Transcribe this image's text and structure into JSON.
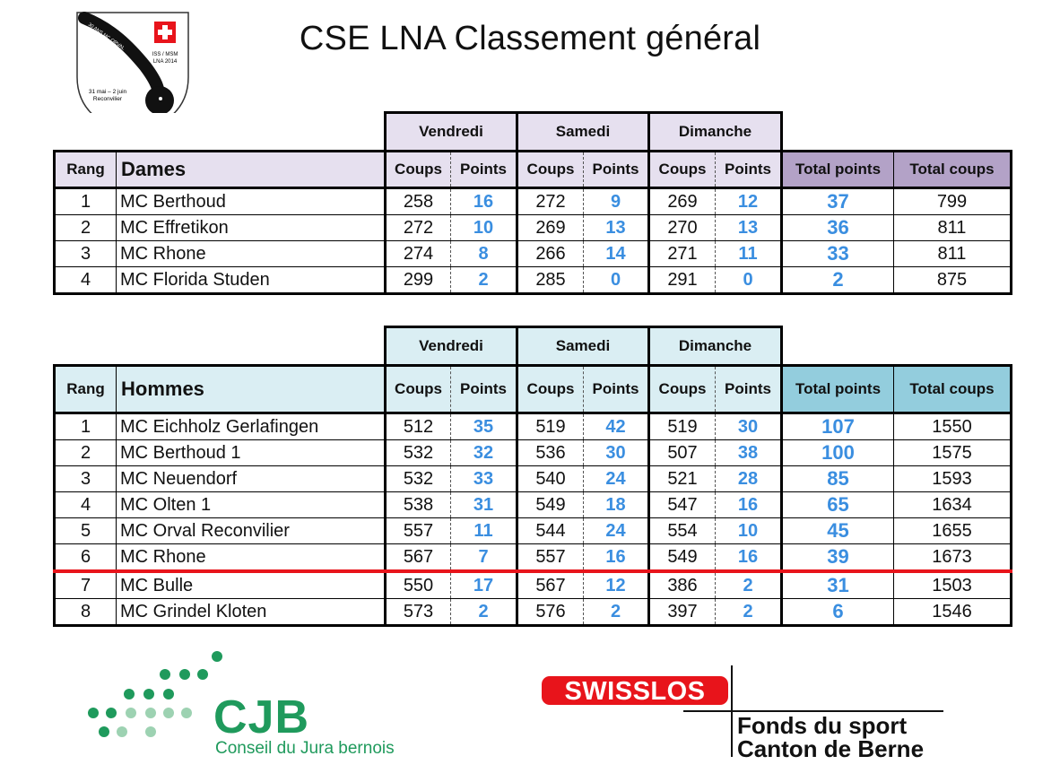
{
  "title": "CSE LNA Classement général",
  "club_logo": {
    "text_arc": "30 ANS MC ORVAL",
    "event": "ISS / MSM",
    "event2": "LNA 2014",
    "dates": "31 mai – 2 juin",
    "place": "Reconvilier",
    "flag_color": "#e8141b"
  },
  "days": [
    "Vendredi",
    "Samedi",
    "Dimanche"
  ],
  "columns": {
    "rang": "Rang",
    "coups": "Coups",
    "points": "Points",
    "total_points": "Total points",
    "total_coups": "Total coups"
  },
  "dames": {
    "label": "Dames",
    "rows": [
      {
        "rang": "1",
        "name": "MC Berthoud",
        "c1": "258",
        "p1": "16",
        "c2": "272",
        "p2": "9",
        "c3": "269",
        "p3": "12",
        "tp": "37",
        "tc": "799"
      },
      {
        "rang": "2",
        "name": "MC Effretikon",
        "c1": "272",
        "p1": "10",
        "c2": "269",
        "p2": "13",
        "c3": "270",
        "p3": "13",
        "tp": "36",
        "tc": "811"
      },
      {
        "rang": "3",
        "name": "MC Rhone",
        "c1": "274",
        "p1": "8",
        "c2": "266",
        "p2": "14",
        "c3": "271",
        "p3": "11",
        "tp": "33",
        "tc": "811"
      },
      {
        "rang": "4",
        "name": "MC Florida Studen",
        "c1": "299",
        "p1": "2",
        "c2": "285",
        "p2": "0",
        "c3": "291",
        "p3": "0",
        "tp": "2",
        "tc": "875"
      }
    ]
  },
  "hommes": {
    "label": "Hommes",
    "rows": [
      {
        "rang": "1",
        "name": "MC Eichholz Gerlafingen",
        "c1": "512",
        "p1": "35",
        "c2": "519",
        "p2": "42",
        "c3": "519",
        "p3": "30",
        "tp": "107",
        "tc": "1550"
      },
      {
        "rang": "2",
        "name": "MC Berthoud 1",
        "c1": "532",
        "p1": "32",
        "c2": "536",
        "p2": "30",
        "c3": "507",
        "p3": "38",
        "tp": "100",
        "tc": "1575"
      },
      {
        "rang": "3",
        "name": "MC Neuendorf",
        "c1": "532",
        "p1": "33",
        "c2": "540",
        "p2": "24",
        "c3": "521",
        "p3": "28",
        "tp": "85",
        "tc": "1593"
      },
      {
        "rang": "4",
        "name": "MC Olten 1",
        "c1": "538",
        "p1": "31",
        "c2": "549",
        "p2": "18",
        "c3": "547",
        "p3": "16",
        "tp": "65",
        "tc": "1634"
      },
      {
        "rang": "5",
        "name": "MC Orval Reconvilier",
        "c1": "557",
        "p1": "11",
        "c2": "544",
        "p2": "24",
        "c3": "554",
        "p3": "10",
        "tp": "45",
        "tc": "1655"
      },
      {
        "rang": "6",
        "name": "MC Rhone",
        "c1": "567",
        "p1": "7",
        "c2": "557",
        "p2": "16",
        "c3": "549",
        "p3": "16",
        "tp": "39",
        "tc": "1673"
      },
      {
        "rang": "7",
        "name": "MC Bulle",
        "c1": "550",
        "p1": "17",
        "c2": "567",
        "p2": "12",
        "c3": "386",
        "p3": "2",
        "tp": "31",
        "tc": "1503"
      },
      {
        "rang": "8",
        "name": "MC Grindel Kloten",
        "c1": "573",
        "p1": "2",
        "c2": "576",
        "p2": "2",
        "c3": "397",
        "p3": "2",
        "tp": "6",
        "tc": "1546"
      }
    ]
  },
  "sponsors": {
    "cjb": "CJB",
    "cjb_sub": "Conseil du Jura bernois",
    "swisslos": "SWISSLOS",
    "fonds_line1": "Fonds du sport",
    "fonds_line2": "Canton de Berne"
  },
  "colors": {
    "points_blue": "#3a8ee0",
    "dames_header": "#e6e0ef",
    "dames_total": "#b3a2c7",
    "hommes_header": "#daeef3",
    "hommes_total": "#93cddd",
    "cut_line": "#e8141b",
    "cjb_green": "#1f9a5c"
  }
}
